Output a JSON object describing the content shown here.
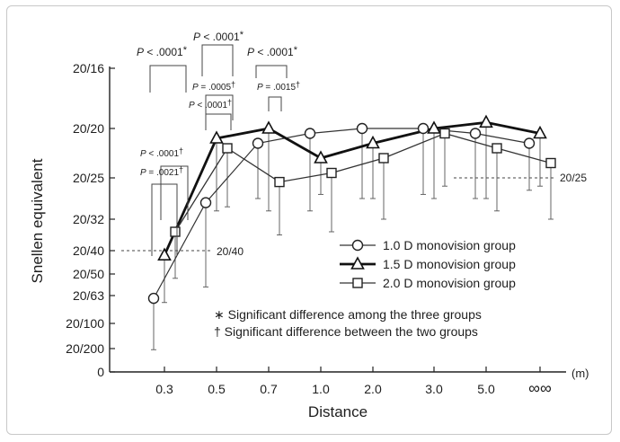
{
  "chart_data": {
    "type": "line",
    "xlabel": "Distance",
    "x_unit": "(m)",
    "ylabel": "Snellen equivalent",
    "categories": [
      "0.3",
      "0.5",
      "0.7",
      "1.0",
      "2.0",
      "3.0",
      "5.0",
      "∞∞"
    ],
    "y_ticks": [
      {
        "label": "0",
        "logmar": 2.25
      },
      {
        "label": "20/200",
        "logmar": 1.0
      },
      {
        "label": "20/100",
        "logmar": 0.7
      },
      {
        "label": "20/63",
        "logmar": 0.5
      },
      {
        "label": "20/50",
        "logmar": 0.4
      },
      {
        "label": "20/40",
        "logmar": 0.3
      },
      {
        "label": "20/32",
        "logmar": 0.2
      },
      {
        "label": "20/25",
        "logmar": 0.1
      },
      {
        "label": "20/20",
        "logmar": 0.0
      },
      {
        "label": "20/16",
        "logmar": -0.1
      }
    ],
    "y_axis": "logMAR, reversed (better acuity upward)",
    "series": [
      {
        "name": "1.0 D monovision group",
        "marker": "circle",
        "values": [
          0.52,
          0.16,
          0.03,
          0.01,
          0.0,
          0.0,
          0.01,
          0.03
        ],
        "sd_lower": [
          1.06,
          0.46,
          0.15,
          0.18,
          0.15,
          0.14,
          0.15,
          0.13
        ]
      },
      {
        "name": "1.5 D monovision group",
        "marker": "triangle",
        "values": [
          0.32,
          0.02,
          0.0,
          0.06,
          0.03,
          0.0,
          -0.01,
          0.01
        ],
        "sd_lower": [
          0.55,
          0.18,
          0.18,
          0.14,
          0.15,
          0.15,
          0.15,
          0.12
        ]
      },
      {
        "name": "2.0 D monovision group",
        "marker": "square",
        "values": [
          0.24,
          0.04,
          0.11,
          0.09,
          0.06,
          0.01,
          0.04,
          0.07
        ],
        "sd_lower": [
          0.42,
          0.17,
          0.25,
          0.24,
          0.2,
          0.12,
          0.18,
          0.2
        ]
      }
    ],
    "reference_lines": [
      {
        "label": "20/40",
        "logmar": 0.3
      },
      {
        "label": "20/25",
        "logmar": 0.1
      }
    ],
    "significance": [
      {
        "label": "P < .0001",
        "mark": "*"
      },
      {
        "label": "P = .0021",
        "mark": "†"
      },
      {
        "label": "P < .0001",
        "mark": "†"
      },
      {
        "label": "P < .0001",
        "mark": "*"
      },
      {
        "label": "P = .0005",
        "mark": "†"
      },
      {
        "label": "P < .0001",
        "mark": "†"
      },
      {
        "label": "P < .0001",
        "mark": "*"
      },
      {
        "label": "P = .0015",
        "mark": "†"
      }
    ],
    "notes": [
      {
        "mark": "∗",
        "text": "Significant difference among the three groups"
      },
      {
        "mark": "†",
        "text": "Significant difference between the two groups"
      }
    ],
    "legend_position": "center-right"
  }
}
